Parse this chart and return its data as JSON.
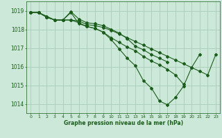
{
  "title": "Graphe pression niveau de la mer (hPa)",
  "background_color": "#cce8d8",
  "grid_color": "#aaccb8",
  "line_color": "#1a5c1a",
  "xlim": [
    -0.5,
    23.5
  ],
  "ylim": [
    1013.5,
    1019.5
  ],
  "yticks": [
    1014,
    1015,
    1016,
    1017,
    1018,
    1019
  ],
  "xticks": [
    0,
    1,
    2,
    3,
    4,
    5,
    6,
    7,
    8,
    9,
    10,
    11,
    12,
    13,
    14,
    15,
    16,
    17,
    18,
    19,
    20,
    21,
    22,
    23
  ],
  "figsize": [
    3.2,
    2.0
  ],
  "dpi": 100,
  "series": [
    {
      "x": [
        0,
        1,
        2,
        3,
        4,
        5,
        6,
        7,
        8,
        9,
        10,
        11,
        12,
        13,
        14,
        15,
        16,
        17,
        18,
        19,
        20,
        21
      ],
      "y": [
        1018.9,
        1018.9,
        1018.7,
        1018.5,
        1018.5,
        1018.9,
        1018.3,
        1018.15,
        1018.05,
        1017.85,
        1017.45,
        1016.95,
        1016.45,
        1016.05,
        1015.25,
        1014.85,
        1014.15,
        1013.95,
        1014.35,
        1014.95,
        1015.95,
        1016.65
      ]
    },
    {
      "x": [
        0,
        1,
        2,
        3,
        4,
        5,
        6,
        7,
        8,
        9,
        10,
        11,
        12,
        13,
        14,
        15,
        16,
        17
      ],
      "y": [
        1018.9,
        1018.9,
        1018.65,
        1018.5,
        1018.5,
        1018.95,
        1018.55,
        1018.35,
        1018.3,
        1018.2,
        1018.0,
        1017.8,
        1017.5,
        1017.1,
        1016.9,
        1016.65,
        1016.45,
        1016.25
      ]
    },
    {
      "x": [
        0,
        1,
        2,
        3,
        4,
        5,
        6,
        7,
        8,
        9,
        10,
        11,
        12,
        13,
        14,
        15,
        16,
        17,
        18,
        19
      ],
      "y": [
        1018.9,
        1018.9,
        1018.65,
        1018.5,
        1018.5,
        1018.5,
        1018.35,
        1018.15,
        1018.05,
        1017.85,
        1017.55,
        1017.3,
        1017.05,
        1016.85,
        1016.55,
        1016.3,
        1016.1,
        1015.85,
        1015.55,
        1015.05
      ]
    },
    {
      "x": [
        0,
        1,
        2,
        3,
        4,
        5,
        6,
        7,
        8,
        9,
        10,
        11,
        12,
        13,
        14,
        15,
        16,
        17,
        18,
        19,
        20,
        21,
        22,
        23
      ],
      "y": [
        1018.9,
        1018.9,
        1018.65,
        1018.5,
        1018.5,
        1018.5,
        1018.45,
        1018.25,
        1018.2,
        1018.1,
        1017.95,
        1017.75,
        1017.55,
        1017.35,
        1017.15,
        1016.95,
        1016.75,
        1016.55,
        1016.35,
        1016.15,
        1015.95,
        1015.75,
        1015.55,
        1016.65
      ]
    }
  ]
}
